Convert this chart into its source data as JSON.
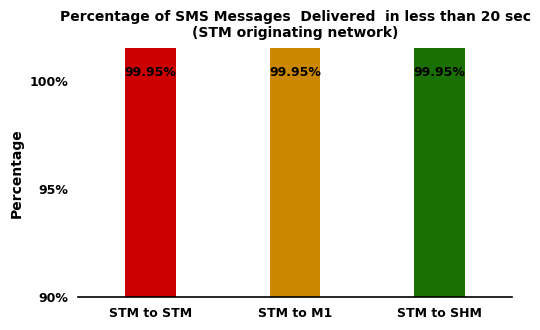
{
  "title_line1": "Percentage of SMS Messages  Delivered  in less than 20 sec",
  "title_line2": "(STM originating network)",
  "categories": [
    "STM to STM",
    "STM to M1",
    "STM to SHM"
  ],
  "values": [
    99.95,
    99.95,
    99.95
  ],
  "bar_colors": [
    "#cc0000",
    "#cc8800",
    "#1a7000"
  ],
  "bar_labels": [
    "99.95%",
    "99.95%",
    "99.95%"
  ],
  "ylabel": "Percentage",
  "ylim": [
    90,
    101.5
  ],
  "yticks": [
    90,
    95,
    100
  ],
  "ytick_labels": [
    "90%",
    "95%",
    "100%"
  ],
  "background_color": "#ffffff",
  "title_fontsize": 10,
  "label_fontsize": 9,
  "ylabel_fontsize": 10,
  "bar_label_fontsize": 9,
  "xlabel_fontsize": 9,
  "bar_width": 0.35
}
